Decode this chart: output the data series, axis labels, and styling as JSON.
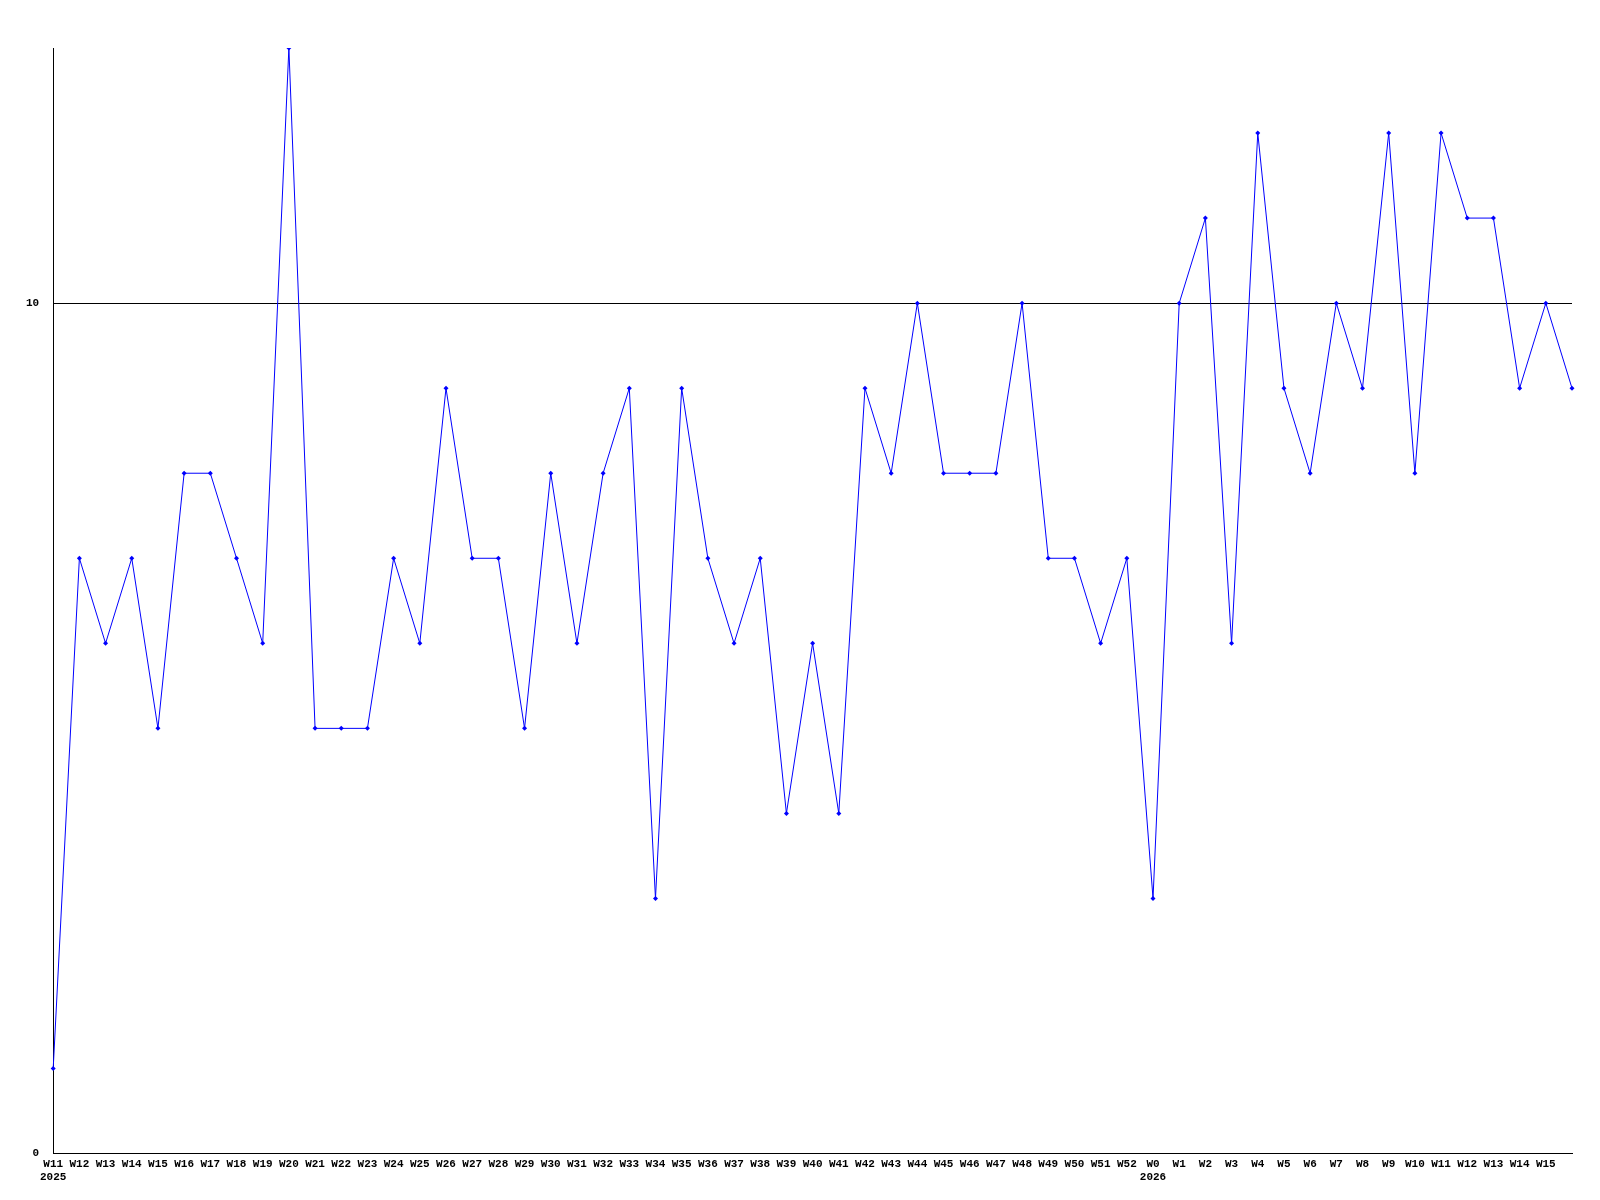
{
  "chart_data": {
    "type": "line",
    "categories": [
      "W11\n2025",
      "W12",
      "W13",
      "W14",
      "W15",
      "W16",
      "W17",
      "W18",
      "W19",
      "W20",
      "W21",
      "W22",
      "W23",
      "W24",
      "W25",
      "W26",
      "W27",
      "W28",
      "W29",
      "W30",
      "W31",
      "W32",
      "W33",
      "W34",
      "W35",
      "W36",
      "W37",
      "W38",
      "W39",
      "W40",
      "W41",
      "W42",
      "W43",
      "W44",
      "W45",
      "W46",
      "W47",
      "W48",
      "W49",
      "W50",
      "W51",
      "W52",
      "W0\n2026",
      "W1",
      "W2",
      "W3",
      "W4",
      "W5",
      "W6",
      "W7",
      "W8",
      "W9",
      "W10",
      "W11",
      "W12",
      "W13",
      "W14",
      "W15",
      null
    ],
    "values": [
      1,
      7,
      6,
      7,
      5,
      8,
      8,
      7,
      6,
      13,
      5,
      5,
      5,
      7,
      6,
      9,
      7,
      7,
      5,
      8,
      6,
      8,
      9,
      3,
      9,
      7,
      6,
      7,
      4,
      6,
      4,
      9,
      8,
      10,
      8,
      8,
      8,
      10,
      7,
      7,
      6,
      7,
      3,
      10,
      11,
      6,
      12,
      9,
      8,
      10,
      9,
      12,
      8,
      12,
      11,
      11,
      9,
      10,
      9
    ],
    "color": "#0000ff",
    "ylim": [
      0,
      13
    ],
    "yticks": [
      0,
      10
    ],
    "grid": "y",
    "marker": "diamond",
    "legend": false
  }
}
